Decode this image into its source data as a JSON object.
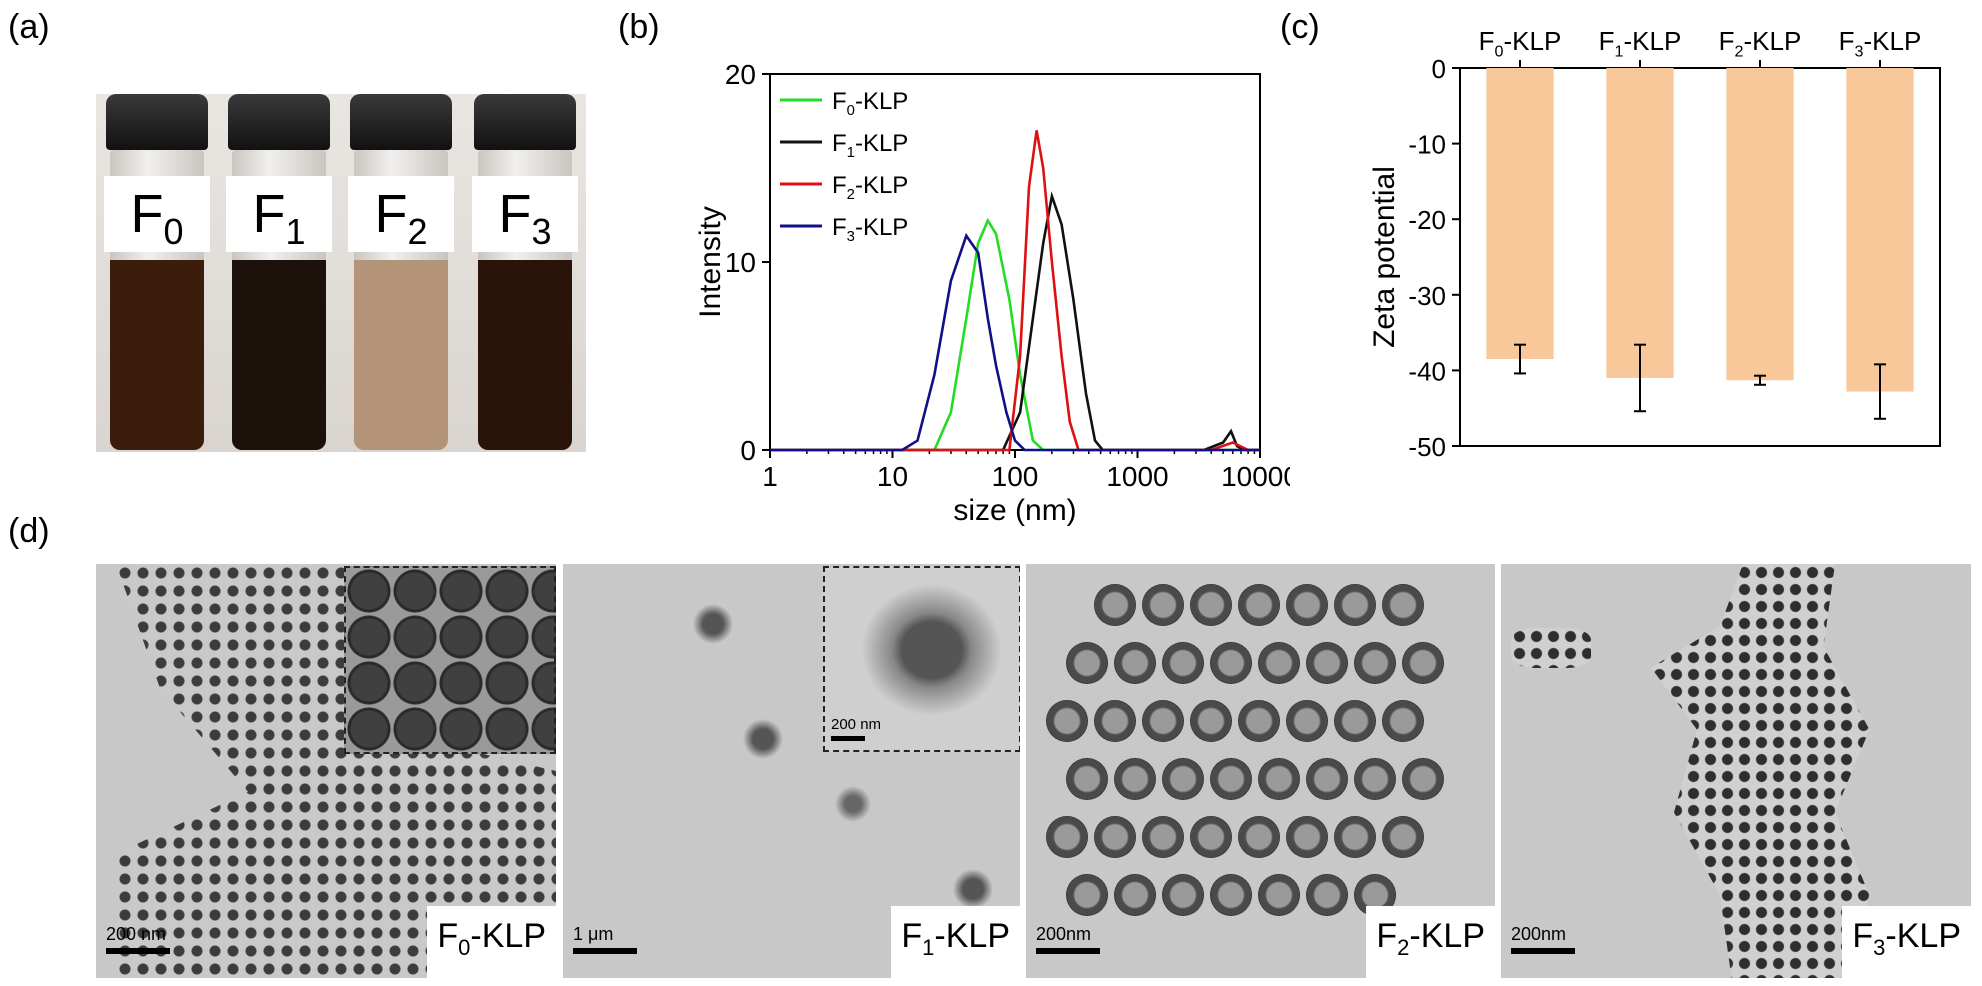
{
  "panels": {
    "a": {
      "letter": "(a)",
      "vials": [
        {
          "label": "F",
          "sub": "0",
          "liquid": "#3c1d0c"
        },
        {
          "label": "F",
          "sub": "1",
          "liquid": "#1c100a"
        },
        {
          "label": "F",
          "sub": "2",
          "liquid": "#b49478"
        },
        {
          "label": "F",
          "sub": "3",
          "liquid": "#2a140a"
        }
      ]
    },
    "b": {
      "letter": "(b)",
      "chart_data": {
        "type": "line",
        "xlabel": "size (nm)",
        "ylabel": "Intensity",
        "xscale": "log",
        "xlim": [
          1,
          10000
        ],
        "ylim": [
          0,
          20
        ],
        "xticks": [
          "1",
          "10",
          "100",
          "1000",
          "10000"
        ],
        "yticks": [
          "0",
          "10",
          "20"
        ],
        "legend_position": "top-left",
        "series": [
          {
            "name": "F",
            "sub": "0",
            "suffix": "-KLP",
            "color": "#22dd22",
            "x": [
              1,
              12,
              22,
              30,
              40,
              50,
              60,
              70,
              90,
              110,
              140,
              170,
              10000
            ],
            "y": [
              0,
              0,
              0,
              2,
              7,
              11,
              12.2,
              11.5,
              8,
              4,
              0.5,
              0,
              0
            ]
          },
          {
            "name": "F",
            "sub": "1",
            "suffix": "-KLP",
            "color": "#111111",
            "x": [
              1,
              80,
              110,
              140,
              170,
              200,
              240,
              300,
              380,
              450,
              520,
              3500,
              5000,
              5800,
              6500,
              7500,
              10000
            ],
            "y": [
              0,
              0,
              2,
              7,
              11,
              13.5,
              12,
              8,
              3,
              0.5,
              0,
              0,
              0.4,
              1.0,
              0.2,
              0,
              0
            ]
          },
          {
            "name": "F",
            "sub": "2",
            "suffix": "-KLP",
            "color": "#dd1111",
            "x": [
              1,
              90,
              110,
              130,
              150,
              170,
              200,
              240,
              280,
              330,
              4000,
              6000,
              8000,
              10000
            ],
            "y": [
              0,
              0,
              5,
              14,
              17,
              15,
              10,
              5,
              1.5,
              0,
              0,
              0.4,
              0,
              0
            ]
          },
          {
            "name": "F",
            "sub": "3",
            "suffix": "-KLP",
            "color": "#101088",
            "x": [
              1,
              12,
              16,
              22,
              30,
              40,
              50,
              60,
              70,
              85,
              100,
              120,
              10000
            ],
            "y": [
              0,
              0,
              0.5,
              4,
              9,
              11.4,
              10.5,
              7,
              4.5,
              2,
              0.5,
              0,
              0
            ]
          }
        ]
      }
    },
    "c": {
      "letter": "(c)",
      "chart_data": {
        "type": "bar",
        "ylabel": "Zeta potential",
        "ylim": [
          -50,
          0
        ],
        "yticks": [
          "0",
          "-10",
          "-20",
          "-30",
          "-40",
          "-50"
        ],
        "bar_color": "#f8c89a",
        "categories": [
          {
            "name": "F",
            "sub": "0",
            "suffix": "-KLP"
          },
          {
            "name": "F",
            "sub": "1",
            "suffix": "-KLP"
          },
          {
            "name": "F",
            "sub": "2",
            "suffix": "-KLP"
          },
          {
            "name": "F",
            "sub": "3",
            "suffix": "-KLP"
          }
        ],
        "values": [
          -38.5,
          -41,
          -41.3,
          -42.8
        ],
        "errors": [
          1.9,
          4.4,
          0.6,
          3.6
        ]
      }
    },
    "d": {
      "letter": "(d)",
      "images": [
        {
          "name": "F",
          "sub": "0",
          "suffix": "-KLP",
          "scalebar": "200 nm",
          "inset_scalebar": ""
        },
        {
          "name": "F",
          "sub": "1",
          "suffix": "-KLP",
          "scalebar": "1 μm",
          "inset_scalebar": "200 nm"
        },
        {
          "name": "F",
          "sub": "2",
          "suffix": "-KLP",
          "scalebar": "200nm",
          "inset_scalebar": ""
        },
        {
          "name": "F",
          "sub": "3",
          "suffix": "-KLP",
          "scalebar": "200nm",
          "inset_scalebar": ""
        }
      ]
    }
  }
}
